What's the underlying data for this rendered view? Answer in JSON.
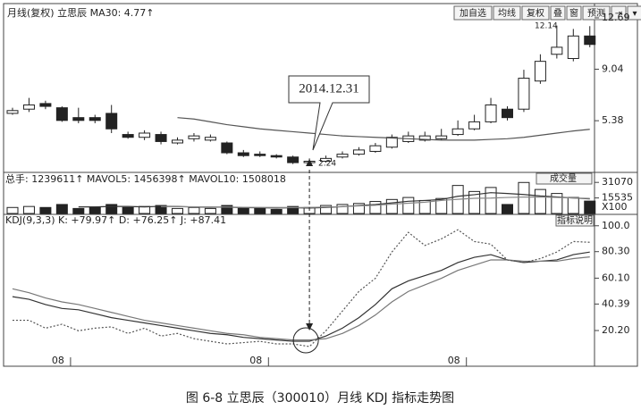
{
  "toolbar": [
    "加自选",
    "均线",
    "复权",
    "叠",
    "窗",
    "预测",
    "⇥",
    "▾"
  ],
  "caption": "图 6-8   立思辰（300010）月线 KDJ 指标走势图",
  "chart_data": [
    {
      "type": "candlestick",
      "title": "月线(复权) 立思辰 MA30: 4.77↑",
      "open": [
        5.9,
        6.2,
        6.6,
        6.3,
        5.6,
        5.6,
        5.9,
        4.4,
        4.2,
        4.4,
        3.8,
        4.1,
        4.0,
        3.8,
        3.1,
        3.0,
        2.9,
        2.8,
        2.4,
        2.5,
        2.8,
        3.0,
        3.2,
        3.5,
        3.9,
        4.0,
        4.1,
        4.4,
        4.8,
        5.3,
        6.2,
        6.2,
        8.2,
        10.1,
        9.8,
        11.4
      ],
      "high": [
        6.3,
        7.0,
        6.8,
        6.4,
        6.3,
        5.8,
        6.5,
        4.6,
        4.7,
        4.6,
        4.2,
        4.5,
        4.4,
        3.9,
        3.3,
        3.2,
        3.0,
        2.9,
        2.7,
        2.9,
        3.2,
        3.5,
        3.8,
        4.4,
        4.6,
        4.6,
        4.8,
        5.4,
        5.8,
        7.0,
        6.4,
        9.0,
        10.1,
        12.14,
        11.9,
        12.1
      ],
      "low": [
        5.8,
        6.0,
        6.2,
        5.3,
        5.2,
        5.2,
        4.5,
        4.1,
        4.0,
        3.7,
        3.7,
        3.9,
        3.9,
        3.0,
        2.8,
        2.8,
        2.7,
        2.3,
        2.24,
        2.4,
        2.7,
        2.9,
        3.1,
        3.4,
        3.8,
        3.9,
        4.0,
        4.3,
        4.7,
        5.2,
        5.4,
        6.0,
        8.0,
        9.8,
        9.6,
        10.6
      ],
      "close": [
        6.1,
        6.5,
        6.4,
        5.4,
        5.4,
        5.4,
        4.8,
        4.2,
        4.5,
        3.9,
        4.0,
        4.3,
        4.2,
        3.1,
        2.9,
        2.9,
        2.8,
        2.4,
        2.5,
        2.7,
        3.0,
        3.3,
        3.6,
        4.2,
        4.3,
        4.3,
        4.3,
        4.8,
        5.3,
        6.5,
        5.6,
        8.4,
        9.6,
        10.6,
        11.4,
        10.8
      ],
      "series": [
        {
          "color": "#555555",
          "values": [
            null,
            null,
            null,
            null,
            null,
            null,
            null,
            null,
            null,
            null,
            5.6,
            5.5,
            5.3,
            5.1,
            4.95,
            4.8,
            4.7,
            4.6,
            4.5,
            4.4,
            4.3,
            4.25,
            4.2,
            4.15,
            4.1,
            4.05,
            4.0,
            4.0,
            4.0,
            4.05,
            4.1,
            4.2,
            4.35,
            4.5,
            4.65,
            4.77
          ]
        }
      ],
      "annotations": [
        "12.14",
        "2.24",
        "2014.12.31"
      ],
      "ylim": [
        1.77,
        13.45
      ],
      "yticks": [
        12.69,
        9.04,
        5.38
      ]
    },
    {
      "type": "bar",
      "title": "总手: 1239611↑ MAVOL5: 1456398↑ MAVOL10: 1508018",
      "indicator": "成交量",
      "unit": "X100",
      "values": [
        6000,
        7000,
        6000,
        9000,
        5000,
        6000,
        9000,
        6000,
        7000,
        8000,
        5000,
        6000,
        5000,
        8000,
        5000,
        5000,
        4000,
        7000,
        6000,
        8000,
        9000,
        10000,
        12000,
        14000,
        16000,
        13000,
        15000,
        28000,
        22000,
        26000,
        9000,
        31000,
        24000,
        20000,
        16000,
        12396
      ],
      "series": [
        {
          "color": "#333333",
          "values": [
            null,
            null,
            null,
            null,
            6600,
            6600,
            7000,
            7000,
            6600,
            7200,
            7000,
            6400,
            6200,
            6400,
            5800,
            5800,
            5400,
            5800,
            5400,
            6000,
            6800,
            8000,
            9000,
            10600,
            12200,
            13000,
            14000,
            17200,
            18800,
            20800,
            20000,
            19000,
            17500,
            16500,
            15500,
            14564
          ]
        },
        {
          "color": "#888888",
          "values": [
            null,
            null,
            null,
            null,
            null,
            null,
            null,
            null,
            null,
            6900,
            6800,
            6700,
            6600,
            6500,
            6200,
            6100,
            6000,
            5900,
            6100,
            6400,
            6900,
            7600,
            8200,
            9400,
            10300,
            11300,
            13000,
            14200,
            15200,
            15400,
            16000,
            16400,
            16500,
            16000,
            15500,
            15080
          ]
        }
      ],
      "ylim": [
        0,
        37500
      ],
      "yticks": [
        31070,
        15535
      ]
    },
    {
      "type": "line",
      "title": "KDJ(9,3,3) K: +79.97↑ D: +76.25↑ J: +87.41",
      "button": "指标说明",
      "categories": [
        null,
        null,
        "08",
        null,
        null,
        null,
        null,
        null,
        null,
        null,
        null,
        null,
        null,
        null,
        "08",
        null,
        null,
        null,
        null,
        null,
        null,
        null,
        null,
        null,
        null,
        null,
        "08",
        null,
        null,
        null,
        null,
        null,
        null,
        null,
        null,
        null
      ],
      "series": [
        {
          "color": "#333333",
          "values": [
            46,
            44,
            40,
            37,
            36,
            33,
            30,
            28,
            26,
            24,
            22,
            20,
            18,
            17,
            15,
            14,
            13,
            12,
            12,
            16,
            22,
            30,
            40,
            52,
            58,
            62,
            66,
            72,
            76,
            78,
            74,
            72,
            73,
            74,
            78,
            79.97
          ]
        },
        {
          "color": "#777777",
          "values": [
            52,
            49,
            45,
            42,
            40,
            37,
            34,
            31,
            28,
            26,
            24,
            22,
            20,
            18,
            17,
            15,
            14,
            13,
            13,
            14,
            18,
            24,
            32,
            42,
            50,
            55,
            60,
            66,
            70,
            74,
            74,
            73,
            73,
            73,
            75,
            76.25
          ]
        },
        {
          "color": "#555555",
          "dashed": true,
          "values": [
            28,
            28,
            22,
            25,
            20,
            22,
            23,
            18,
            22,
            16,
            18,
            14,
            12,
            10,
            11,
            12,
            10,
            10,
            8,
            20,
            35,
            50,
            60,
            80,
            95,
            85,
            90,
            97,
            88,
            86,
            74,
            72,
            75,
            80,
            88,
            87.41
          ]
        }
      ],
      "ylim": [
        -7,
        108
      ],
      "yticks": [
        {
          "value": 100,
          "label": "100.0"
        },
        {
          "value": 80.3,
          "label": "80.30"
        },
        {
          "value": 60.1,
          "label": "60.10"
        },
        {
          "value": 40.39,
          "label": "40.39"
        },
        {
          "value": 20.2,
          "label": "20.20"
        }
      ]
    }
  ]
}
